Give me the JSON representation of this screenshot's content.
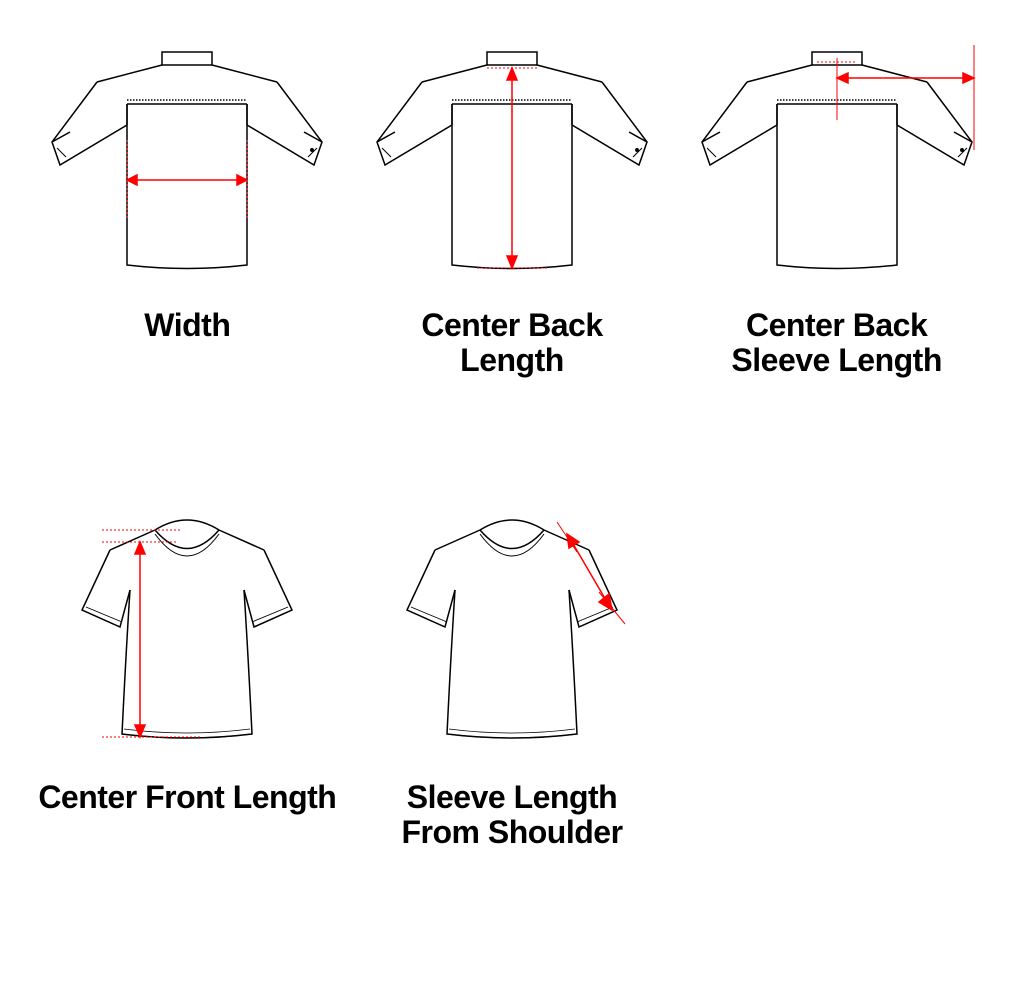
{
  "diagrams": [
    {
      "id": "width",
      "garment": "shirt-back",
      "label": "Width",
      "arrow": {
        "type": "horizontal",
        "color": "#ff0000"
      }
    },
    {
      "id": "center-back-length",
      "garment": "shirt-back",
      "label": "Center Back\nLength",
      "arrow": {
        "type": "vertical",
        "color": "#ff0000"
      }
    },
    {
      "id": "center-back-sleeve-length",
      "garment": "shirt-back",
      "label": "Center Back\nSleeve Length",
      "arrow": {
        "type": "bent-horizontal",
        "color": "#ff0000"
      }
    },
    {
      "id": "center-front-length",
      "garment": "tshirt-front",
      "label": "Center Front Length",
      "arrow": {
        "type": "vertical-side",
        "color": "#ff0000"
      }
    },
    {
      "id": "sleeve-from-shoulder",
      "garment": "tshirt-front",
      "label": "Sleeve Length\nFrom Shoulder",
      "arrow": {
        "type": "diagonal-sleeve",
        "color": "#ff0000"
      }
    }
  ],
  "style": {
    "stroke_color": "#000000",
    "stroke_width": 1.5,
    "arrow_color": "#ff0000",
    "arrow_width": 1.5,
    "background": "#ffffff",
    "label_font_size": 32,
    "label_font_weight": 900
  }
}
